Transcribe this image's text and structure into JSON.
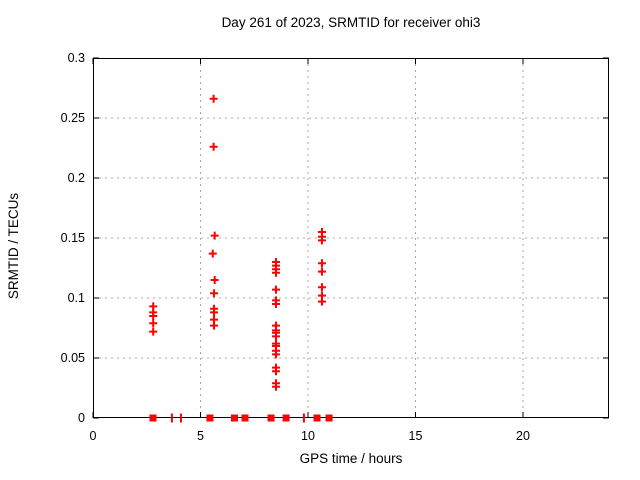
{
  "chart_data": {
    "type": "scatter",
    "title": "Day 261 of 2023, SRMTID for receiver ohi3",
    "xlabel": "GPS time / hours",
    "ylabel": "SRMTID / TECUs",
    "xlim": [
      0,
      24
    ],
    "ylim": [
      0,
      0.3
    ],
    "xticks": [
      0,
      5,
      10,
      15,
      20
    ],
    "xtick_labels": [
      "0",
      "5",
      "10",
      "15",
      "20"
    ],
    "yticks": [
      0,
      0.05,
      0.1,
      0.15,
      0.2,
      0.25,
      0.3
    ],
    "ytick_labels": [
      "0",
      "0.05",
      "0.1",
      "0.15",
      "0.2",
      "0.25",
      "0.3"
    ],
    "grid": true,
    "legend": "none",
    "marker_color": "#ff0000",
    "grid_color": "#a8a8a8",
    "border_color": "#000000",
    "series": [
      {
        "name": "srmtid-values",
        "marker": "plus",
        "points": [
          [
            2.8,
            0.093
          ],
          [
            2.8,
            0.088
          ],
          [
            2.8,
            0.085
          ],
          [
            2.8,
            0.079
          ],
          [
            2.8,
            0.072
          ],
          [
            5.61,
            0.266
          ],
          [
            5.61,
            0.226
          ],
          [
            5.66,
            0.152
          ],
          [
            5.57,
            0.137
          ],
          [
            5.66,
            0.115
          ],
          [
            5.63,
            0.104
          ],
          [
            5.63,
            0.091
          ],
          [
            5.63,
            0.088
          ],
          [
            5.63,
            0.082
          ],
          [
            5.63,
            0.077
          ],
          [
            8.51,
            0.13
          ],
          [
            8.51,
            0.127
          ],
          [
            8.51,
            0.124
          ],
          [
            8.51,
            0.121
          ],
          [
            8.51,
            0.107
          ],
          [
            8.51,
            0.098
          ],
          [
            8.51,
            0.095
          ],
          [
            8.51,
            0.077
          ],
          [
            8.51,
            0.073
          ],
          [
            8.51,
            0.071
          ],
          [
            8.51,
            0.068
          ],
          [
            8.51,
            0.062
          ],
          [
            8.51,
            0.06
          ],
          [
            8.51,
            0.056
          ],
          [
            8.51,
            0.053
          ],
          [
            8.51,
            0.042
          ],
          [
            8.51,
            0.039
          ],
          [
            8.51,
            0.029
          ],
          [
            8.51,
            0.026
          ],
          [
            10.65,
            0.155
          ],
          [
            10.65,
            0.151
          ],
          [
            10.65,
            0.148
          ],
          [
            10.65,
            0.129
          ],
          [
            10.65,
            0.122
          ],
          [
            10.65,
            0.109
          ],
          [
            10.65,
            0.102
          ],
          [
            10.65,
            0.097
          ]
        ]
      },
      {
        "name": "zero-values-squares",
        "marker": "square",
        "points": [
          [
            2.79,
            0
          ],
          [
            5.44,
            0
          ],
          [
            6.58,
            0
          ],
          [
            7.07,
            0
          ],
          [
            8.28,
            0
          ],
          [
            8.98,
            0
          ],
          [
            10.42,
            0
          ],
          [
            10.98,
            0
          ]
        ]
      },
      {
        "name": "zero-values-ticks",
        "marker": "vbar",
        "points": [
          [
            3.67,
            0
          ],
          [
            4.09,
            0
          ],
          [
            9.81,
            0
          ]
        ]
      }
    ]
  }
}
